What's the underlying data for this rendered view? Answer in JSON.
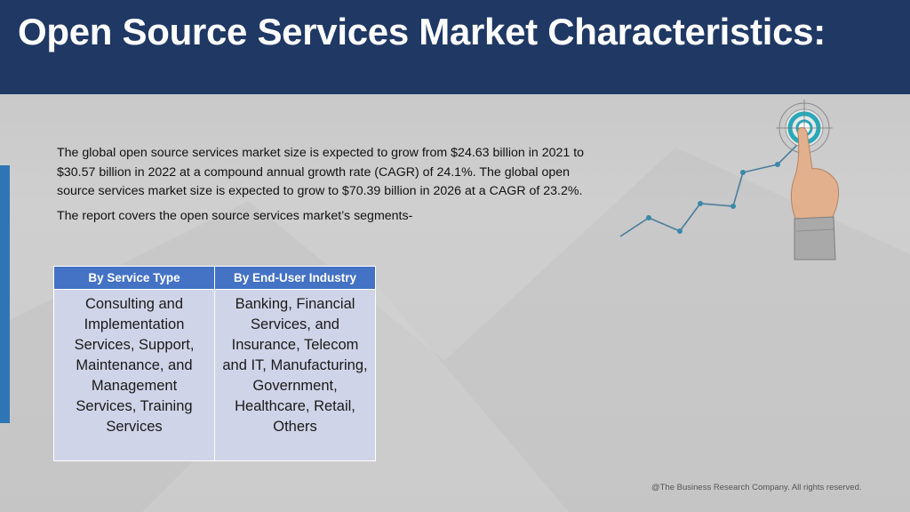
{
  "header": {
    "title": "Open Source Services Market Characteristics:"
  },
  "intro": {
    "paragraph1": "The global open source services market size is expected to grow from $24.63 billion in 2021 to $30.57 billion in 2022 at a compound annual growth rate (CAGR) of 24.1%. The global open source services market size is expected to grow to $70.39 billion in 2026 at a CAGR of 23.2%.",
    "paragraph2": "The report covers the open source services market’s segments-"
  },
  "segments_table": {
    "headers": [
      "By Service Type",
      "By End-User Industry"
    ],
    "cells": [
      "Consulting and Implementation Services, Support, Maintenance, and Management Services, Training Services",
      "Banking, Financial Services, and Insurance, Telecom and IT, Manufacturing, Government, Healthcare, Retail, Others"
    ]
  },
  "footer": {
    "copyright": "@The Business Research Company. All rights reserved."
  },
  "colors": {
    "header_bg": "#1f3864",
    "accent_blue": "#2e75b6",
    "table_header": "#4472c4",
    "table_cell": "#d0d4e8",
    "target_teal": "#2aa8b8"
  },
  "icons": [
    "growth-line-graphic",
    "target-icon",
    "pointing-hand-icon"
  ]
}
